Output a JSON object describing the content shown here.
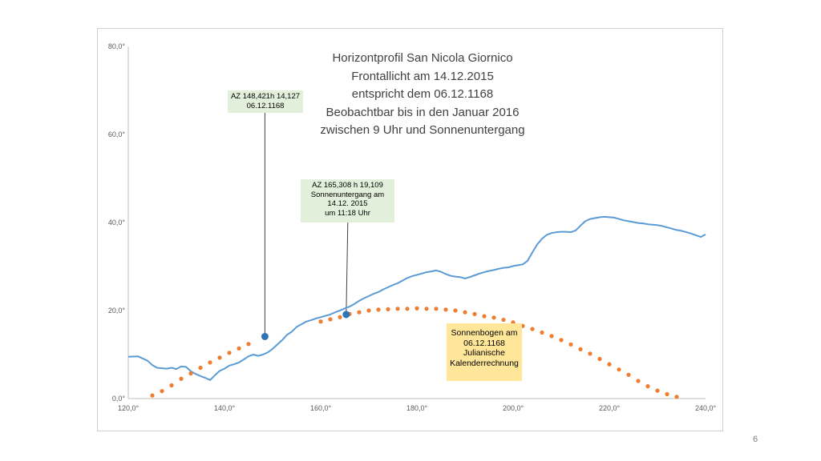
{
  "page_number": "6",
  "annotations": {
    "title_lines": [
      "Horizontprofil San Nicola Giornico",
      "Frontallicht am 14.12.2015",
      "entspricht dem 06.12.1168",
      "Beobachtbar bis in den Januar 2016",
      "zwischen 9 Uhr und Sonnenuntergang"
    ],
    "callout_1": [
      "AZ 148,421h 14,127",
      "06.12.1168"
    ],
    "callout_2": [
      "AZ 165,308 h  19,109",
      "Sonnenuntergang am",
      "14.12. 2015",
      "um 11:18 Uhr"
    ],
    "callout_3": [
      "Sonnenbogen am",
      "06.12.1168",
      "Julianische",
      "Kalenderrechnung"
    ]
  },
  "chart_data": {
    "type": "line",
    "xlim": [
      120,
      240
    ],
    "ylim": [
      0,
      80
    ],
    "x_ticks": [
      120,
      140,
      160,
      180,
      200,
      220,
      240
    ],
    "y_ticks": [
      0,
      20,
      40,
      60,
      80
    ],
    "x_tick_labels": [
      "120,0°",
      "140,0°",
      "160,0°",
      "180,0°",
      "200,0°",
      "220,0°",
      "240,0°"
    ],
    "y_tick_labels": [
      "0,0°",
      "20,0°",
      "40,0°",
      "60,0°",
      "80,0°"
    ],
    "grid": false,
    "colors": {
      "horizon": "#5b9bd5",
      "sun": "#ed7d31",
      "marker": "#2e75b6",
      "axis": "#bfbfbf"
    },
    "series": [
      {
        "kind": "line",
        "x": [
          120,
          122,
          124,
          125,
          126,
          127,
          128,
          129,
          130,
          131,
          132,
          133,
          134,
          135,
          136,
          137,
          138,
          139,
          140,
          141,
          142,
          143,
          144,
          145,
          146,
          147,
          148,
          149,
          150,
          151,
          152,
          153,
          154,
          155,
          156,
          157,
          158,
          159,
          160,
          161,
          162,
          163,
          164,
          165,
          166,
          167,
          168,
          169,
          170,
          171,
          172,
          173,
          174,
          175,
          176,
          177,
          178,
          179,
          180,
          181,
          182,
          183,
          184,
          185,
          186,
          187,
          188,
          189,
          190,
          191,
          192,
          193,
          194,
          195,
          196,
          197,
          198,
          199,
          200,
          201,
          202,
          203,
          204,
          205,
          206,
          207,
          208,
          209,
          210,
          211,
          212,
          213,
          214,
          215,
          216,
          217,
          218,
          219,
          220,
          221,
          222,
          223,
          224,
          225,
          226,
          227,
          228,
          229,
          230,
          231,
          232,
          233,
          234,
          235,
          236,
          237,
          238,
          239,
          240
        ],
        "y": [
          9.5,
          9.6,
          8.6,
          7.6,
          7.0,
          6.9,
          6.8,
          7.0,
          6.7,
          7.3,
          7.2,
          6.2,
          5.6,
          5.1,
          4.7,
          4.2,
          5.3,
          6.3,
          6.8,
          7.5,
          7.8,
          8.2,
          8.9,
          9.6,
          10.0,
          9.7,
          10.0,
          10.5,
          11.3,
          12.3,
          13.3,
          14.5,
          15.2,
          16.3,
          16.9,
          17.5,
          17.8,
          18.2,
          18.5,
          18.8,
          19.1,
          19.6,
          20.0,
          20.5,
          20.9,
          21.5,
          22.2,
          22.8,
          23.3,
          23.8,
          24.2,
          24.8,
          25.3,
          25.8,
          26.2,
          26.8,
          27.4,
          27.8,
          28.1,
          28.4,
          28.7,
          28.9,
          29.1,
          28.8,
          28.3,
          27.9,
          27.7,
          27.6,
          27.3,
          27.6,
          28.0,
          28.4,
          28.7,
          29.0,
          29.2,
          29.5,
          29.7,
          29.8,
          30.1,
          30.3,
          30.5,
          31.3,
          33.2,
          35.0,
          36.3,
          37.2,
          37.6,
          37.8,
          37.9,
          37.9,
          37.8,
          38.2,
          39.3,
          40.3,
          40.8,
          41.0,
          41.2,
          41.3,
          41.2,
          41.1,
          40.8,
          40.5,
          40.3,
          40.1,
          39.9,
          39.8,
          39.6,
          39.5,
          39.4,
          39.2,
          38.9,
          38.6,
          38.3,
          38.1,
          37.8,
          37.5,
          37.1,
          36.7,
          37.3
        ]
      },
      {
        "kind": "dots",
        "x": [
          125,
          127,
          129,
          131,
          133,
          135,
          137,
          139,
          141,
          143,
          145,
          160,
          162,
          164,
          166,
          168,
          170,
          172,
          174,
          176,
          178,
          180,
          182,
          184,
          186,
          188,
          190,
          192,
          194,
          196,
          198,
          200,
          202,
          204,
          206,
          208,
          210,
          212,
          214,
          216,
          218,
          220,
          222,
          224,
          226,
          228,
          230,
          232,
          234
        ],
        "y": [
          0.7,
          1.7,
          3.0,
          4.5,
          5.7,
          7.0,
          8.2,
          9.3,
          10.4,
          11.4,
          12.4,
          17.5,
          18.0,
          18.5,
          19.2,
          19.6,
          20.0,
          20.2,
          20.3,
          20.4,
          20.4,
          20.5,
          20.4,
          20.4,
          20.2,
          20.0,
          19.6,
          19.2,
          18.7,
          18.4,
          17.9,
          17.3,
          16.5,
          15.8,
          15.0,
          14.2,
          13.3,
          12.3,
          11.2,
          10.2,
          9.0,
          7.8,
          6.6,
          5.4,
          4.0,
          2.8,
          1.8,
          1.0,
          0.4
        ]
      },
      {
        "kind": "point",
        "x": [
          148.4
        ],
        "y": [
          14.1
        ]
      },
      {
        "kind": "point",
        "x": [
          165.3
        ],
        "y": [
          19.1
        ]
      }
    ]
  }
}
